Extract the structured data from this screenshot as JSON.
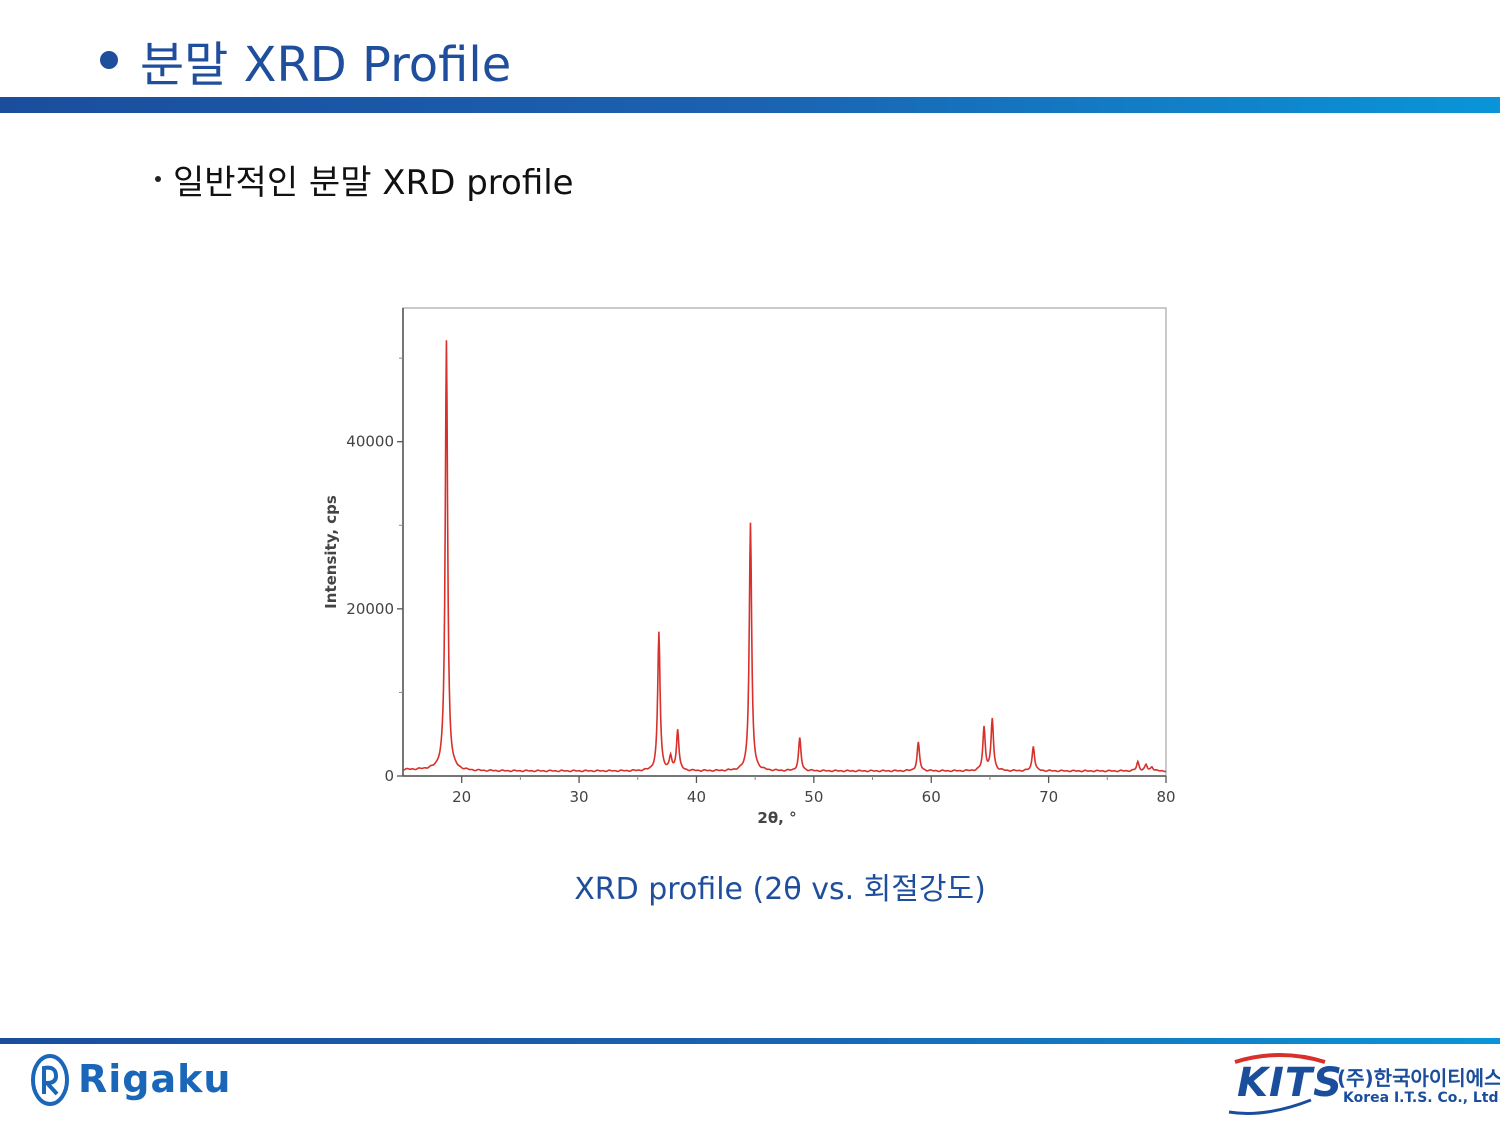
{
  "header": {
    "title": "분말 XRD Profile"
  },
  "body": {
    "bullet": "일반적인 분말 XRD profile",
    "caption": "XRD profile (2θ vs. 회절강도)"
  },
  "footer": {
    "left_logo": "Rigaku",
    "right_logo": {
      "mark": "KITS",
      "korean": "(주)한국아이티에스",
      "english": "Korea I.T.S. Co., Ltd."
    }
  },
  "colors": {
    "accent": "#1f4e9c",
    "bar_end": "#0a95d8",
    "trace": "#d8302a"
  },
  "chart_data": {
    "type": "line",
    "xlabel": "2θ, °",
    "ylabel": "Intensity, cps",
    "xlim": [
      15,
      80
    ],
    "ylim": [
      0,
      56000
    ],
    "xticks": [
      20,
      30,
      40,
      50,
      60,
      70,
      80
    ],
    "yticks": [
      0,
      20000,
      40000
    ],
    "grid": false,
    "baseline": 600,
    "peaks": [
      {
        "x": 18.7,
        "y": 52000
      },
      {
        "x": 36.8,
        "y": 17200
      },
      {
        "x": 37.8,
        "y": 2200
      },
      {
        "x": 38.4,
        "y": 5500
      },
      {
        "x": 44.6,
        "y": 30300
      },
      {
        "x": 48.8,
        "y": 4500
      },
      {
        "x": 58.9,
        "y": 4000
      },
      {
        "x": 64.5,
        "y": 5800
      },
      {
        "x": 65.2,
        "y": 6800
      },
      {
        "x": 68.7,
        "y": 3600
      },
      {
        "x": 77.6,
        "y": 1700
      },
      {
        "x": 78.3,
        "y": 1300
      },
      {
        "x": 78.8,
        "y": 1100
      }
    ]
  }
}
